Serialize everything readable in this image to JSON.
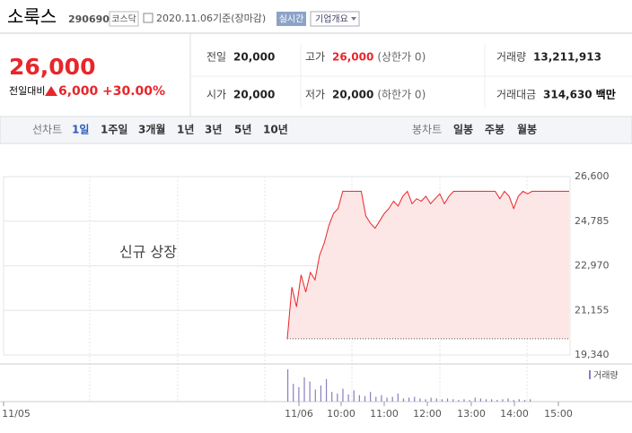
{
  "header": {
    "name": "소룩스",
    "code": "290690",
    "market": "코스닥",
    "date": "2020.11.06",
    "basis": "기준(장마감)",
    "realtime": "실시간",
    "company": "기업개요"
  },
  "price": {
    "current": "26,000",
    "change_label": "전일대비",
    "change": "6,000",
    "rate": "+30.00%"
  },
  "stats": [
    {
      "label": "전일",
      "value": "20,000"
    },
    {
      "label": "고가",
      "value": "26,000",
      "note": "(상한가 0)"
    },
    {
      "label": "거래량",
      "value": "13,211,913"
    },
    {
      "label": "시가",
      "value": "20,000"
    },
    {
      "label": "저가",
      "value": "20,000",
      "note": "(하한가 0)"
    },
    {
      "label": "거래대금",
      "value": "314,630",
      "unit": "백만"
    }
  ],
  "tabs": {
    "line_label": "선차트",
    "line": [
      "1일",
      "1주일",
      "3개월",
      "1년",
      "3년",
      "5년",
      "10년"
    ],
    "candle_label": "봉차트",
    "candle": [
      "일봉",
      "주봉",
      "월봉"
    ]
  },
  "chart_data": {
    "type": "line",
    "annotation": "신규 상장",
    "color": "#e8262b",
    "values": [
      20000,
      22100,
      21300,
      22600,
      21900,
      22700,
      22400,
      23400,
      23900,
      24600,
      25100,
      25300,
      26000,
      26000,
      26000,
      26000,
      26000,
      25000,
      24700,
      24500,
      24800,
      25100,
      25300,
      25600,
      25400,
      25800,
      26000,
      25500,
      25700,
      25600,
      25800,
      25500,
      25700,
      25900,
      25500,
      25800,
      26000,
      26000,
      26000,
      26000,
      26000,
      26000,
      26000,
      26000,
      26000,
      26000,
      25700,
      26000,
      25800,
      25300,
      25800,
      26000,
      25900,
      26000,
      26000,
      26000,
      26000,
      26000,
      26000,
      26000,
      26000,
      26000
    ],
    "ylim": [
      19340,
      26600
    ],
    "yticks": [
      {
        "value": 26600,
        "label": "26,600"
      },
      {
        "value": 24785,
        "label": "24,785"
      },
      {
        "value": 22970,
        "label": "22,970"
      },
      {
        "value": 21155,
        "label": "21,155"
      },
      {
        "value": 19340,
        "label": "19,340"
      }
    ],
    "xticks": [
      "11/05",
      "11/06",
      "10:00",
      "11:00",
      "12:00",
      "13:00",
      "14:00",
      "15:00"
    ],
    "volume": {
      "name": "거래량",
      "color": "#8a7fc0",
      "values": [
        40,
        22,
        18,
        30,
        25,
        15,
        20,
        28,
        12,
        10,
        16,
        9,
        14,
        8,
        7,
        12,
        6,
        8,
        5,
        6,
        10,
        4,
        5,
        6,
        4,
        3,
        5,
        4,
        3,
        4,
        3,
        2,
        3,
        2,
        5,
        4,
        3,
        3,
        2,
        3,
        4,
        2,
        3,
        2,
        3
      ]
    },
    "grid": true
  }
}
